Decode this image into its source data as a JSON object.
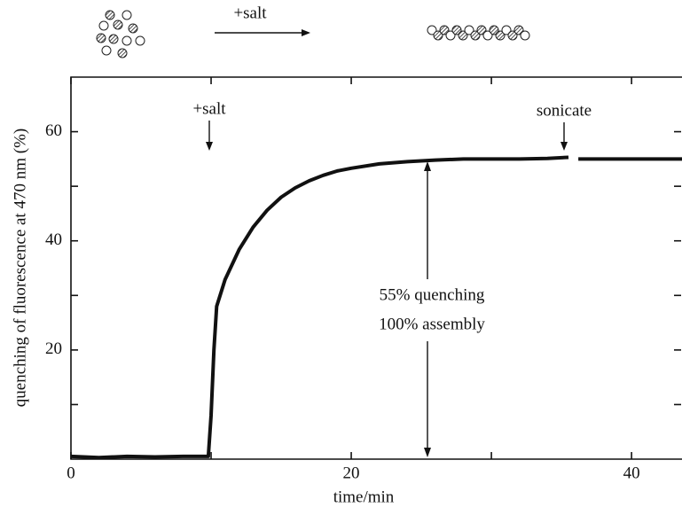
{
  "chart_data": {
    "type": "line",
    "xlabel": "time/min",
    "ylabel": "quenching of fluorescence at 470 nm (%)",
    "x": [
      0,
      2,
      4,
      6,
      8,
      9.8,
      10.0,
      10.2,
      10.4,
      11,
      12,
      13,
      14,
      15,
      16,
      17,
      18,
      19,
      20,
      22,
      24,
      26,
      28,
      30,
      32,
      34,
      35.5,
      35.8,
      36.2,
      38,
      40,
      42,
      43.6
    ],
    "series": [
      {
        "color": "#111111",
        "values": [
          0.5,
          0.3,
          0.5,
          0.4,
          0.5,
          0.5,
          8,
          20,
          28,
          32.9,
          38.4,
          42.5,
          45.6,
          48.0,
          49.7,
          51.0,
          52.0,
          52.8,
          53.3,
          54.1,
          54.5,
          54.8,
          55,
          55,
          55,
          55.1,
          55.3,
          null,
          55.0,
          55,
          55,
          55,
          55
        ]
      }
    ],
    "xlim": [
      0,
      43.6
    ],
    "ylim": [
      0,
      70
    ],
    "xticks": [
      0,
      20,
      40
    ],
    "yticks": [
      20,
      40,
      60
    ],
    "x_minor_ticks": [
      10,
      30
    ],
    "y_minor_ticks": [
      10,
      30,
      50
    ],
    "annotations": [
      "+salt",
      "sonicate",
      "55% quenching",
      "100% assembly"
    ],
    "schematic_label": "+salt"
  }
}
